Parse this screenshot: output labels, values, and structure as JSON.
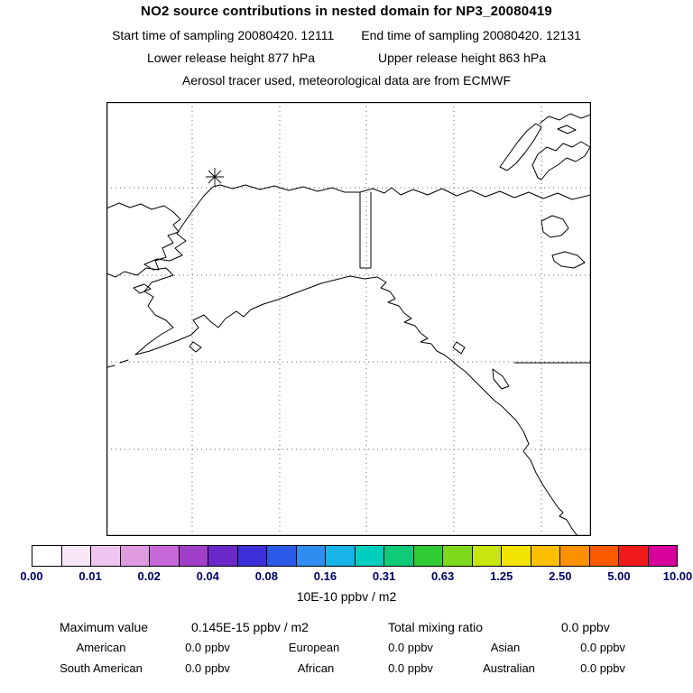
{
  "header": {
    "title": "NO2 source contributions in nested domain for NP3_20080419",
    "start_time": "Start time of sampling 20080420. 12111",
    "end_time": "End time of sampling 20080420. 12131",
    "lower_release": "Lower release height  877 hPa",
    "upper_release": "Upper release height  863 hPa",
    "tracer_line": "Aerosol tracer used, meteorological data are from ECMWF"
  },
  "colorbar": {
    "unit_label": "10E-10 ppbv / m2",
    "tick_labels": [
      "0.00",
      "0.01",
      "0.02",
      "0.04",
      "0.08",
      "0.16",
      "0.31",
      "0.63",
      "1.25",
      "2.50",
      "5.00",
      "10.00"
    ],
    "colors": [
      "#ffffff",
      "#f9e7f9",
      "#f0c4f0",
      "#e09be0",
      "#c668d8",
      "#a13ec8",
      "#6a28c8",
      "#3c30d8",
      "#2b59e8",
      "#2e8df0",
      "#18b4e8",
      "#00cfc0",
      "#0ecb7a",
      "#2fcb32",
      "#7ed81c",
      "#c8e60e",
      "#f2e400",
      "#fdbf00",
      "#fd9000",
      "#fb5a00",
      "#f01a1a",
      "#d8009a"
    ]
  },
  "stats": {
    "max_label": "Maximum value",
    "max_value": "0.145E-15 ppbv / m2",
    "total_label": "Total mixing ratio",
    "total_value": "0.0 ppbv",
    "regions": [
      {
        "name": "American",
        "value": "0.0 ppbv"
      },
      {
        "name": "European",
        "value": "0.0 ppbv"
      },
      {
        "name": "Asian",
        "value": "0.0 ppbv"
      },
      {
        "name": "South American",
        "value": "0.0 ppbv"
      },
      {
        "name": "African",
        "value": "0.0 ppbv"
      },
      {
        "name": "Australian",
        "value": "0.0 ppbv"
      }
    ]
  },
  "chart_data": {
    "type": "heatmap",
    "title": "NO2 source contributions in nested domain for NP3_20080419",
    "subtitle": "Aerosol tracer used, meteorological data are from ECMWF",
    "map_region": "Alaska / northwestern North America with lat-lon grid",
    "release_marker": "asterisk near Arctic coast of northern Alaska",
    "colorbar_ticks": [
      0.0,
      0.01,
      0.02,
      0.04,
      0.08,
      0.16,
      0.31,
      0.63,
      1.25,
      2.5,
      5.0,
      10.0
    ],
    "colorbar_unit": "10E-10 ppbv / m2",
    "maximum_value": "0.145E-15 ppbv / m2",
    "total_mixing_ratio_ppbv": 0.0,
    "region_contributions_ppbv": {
      "American": 0.0,
      "European": 0.0,
      "Asian": 0.0,
      "South American": 0.0,
      "African": 0.0,
      "Australian": 0.0
    },
    "shaded_field_visible": false,
    "grid": true,
    "legend_position": "bottom"
  }
}
